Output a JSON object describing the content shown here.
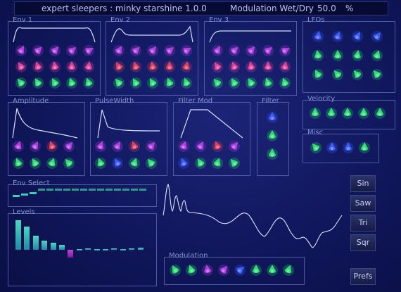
{
  "title": {
    "plugin": "expert sleepers : minky starshine 1.0.0",
    "wetdry_label": "Modulation Wet/Dry",
    "wetdry_value": "50.0",
    "wetdry_unit": "%"
  },
  "panels": {
    "env1": "Env 1",
    "env2": "Env 2",
    "env3": "Env 3",
    "lfos": "LFOs",
    "velocity": "Velocity",
    "misc": "Misc",
    "amplitude": "Amplitude",
    "pulsewidth": "PulseWidth",
    "filtermod": "Filter Mod",
    "filter": "Filter",
    "envselect": "Env Select",
    "levels": "Levels",
    "modulation": "Modulation"
  },
  "buttons": {
    "sin": "Sin",
    "saw": "Saw",
    "tri": "Tri",
    "sqr": "Sqr",
    "prefs": "Prefs"
  },
  "colors": {
    "purple": "#b040e0",
    "magenta": "#e0409a",
    "red": "#e04060",
    "green": "#2ee070",
    "blue": "#3a5cff",
    "teal": "#35d0b5",
    "cyan": "#40b8e8"
  },
  "levels": [
    0.95,
    0.75,
    0.45,
    0.3,
    0.22,
    0.15,
    -0.25,
    0.03,
    0.04,
    0.02,
    0.03,
    0.04,
    0.02,
    0.05,
    0.07
  ]
}
